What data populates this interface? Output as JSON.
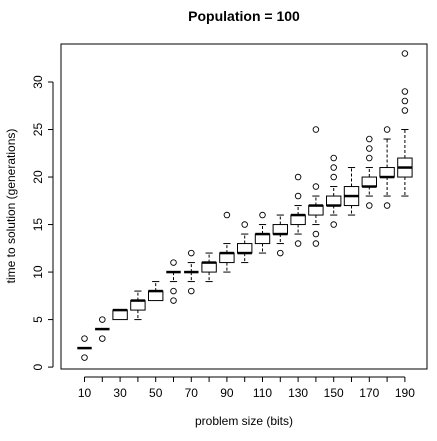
{
  "chart_data": {
    "type": "boxplot",
    "title": "Population = 100",
    "xlabel": "problem size (bits)",
    "ylabel": "time to solution (generations)",
    "ylim": [
      -0.2,
      34
    ],
    "y_ticks": [
      0,
      5,
      10,
      15,
      20,
      25,
      30
    ],
    "categories": [
      10,
      20,
      30,
      40,
      50,
      60,
      70,
      80,
      90,
      100,
      110,
      120,
      130,
      140,
      150,
      160,
      170,
      180,
      190
    ],
    "x_tick_labels": [
      10,
      30,
      50,
      70,
      90,
      110,
      130,
      150,
      170,
      190
    ],
    "series": [
      {
        "x": 10,
        "min": 2,
        "q1": 2,
        "median": 2,
        "q3": 2,
        "max": 2,
        "outliers": [
          1,
          3
        ]
      },
      {
        "x": 20,
        "min": 4,
        "q1": 4,
        "median": 4,
        "q3": 4,
        "max": 4,
        "outliers": [
          3,
          5
        ]
      },
      {
        "x": 30,
        "min": 5,
        "q1": 5,
        "median": 6,
        "q3": 6,
        "max": 6,
        "outliers": []
      },
      {
        "x": 40,
        "min": 5,
        "q1": 6,
        "median": 7,
        "q3": 7,
        "max": 8,
        "outliers": []
      },
      {
        "x": 50,
        "min": 7,
        "q1": 7,
        "median": 8,
        "q3": 8,
        "max": 9,
        "outliers": []
      },
      {
        "x": 60,
        "min": 9,
        "q1": 10,
        "median": 10,
        "q3": 10,
        "max": 10,
        "outliers": [
          7,
          8,
          11
        ]
      },
      {
        "x": 70,
        "min": 9,
        "q1": 10,
        "median": 10,
        "q3": 10,
        "max": 11,
        "outliers": [
          8,
          12
        ]
      },
      {
        "x": 80,
        "min": 9,
        "q1": 10,
        "median": 11,
        "q3": 11,
        "max": 12,
        "outliers": []
      },
      {
        "x": 90,
        "min": 10,
        "q1": 11,
        "median": 12,
        "q3": 12,
        "max": 13,
        "outliers": [
          16
        ]
      },
      {
        "x": 100,
        "min": 11,
        "q1": 12,
        "median": 12,
        "q3": 13,
        "max": 14,
        "outliers": [
          15
        ]
      },
      {
        "x": 110,
        "min": 12,
        "q1": 13,
        "median": 14,
        "q3": 14,
        "max": 15,
        "outliers": [
          16
        ]
      },
      {
        "x": 120,
        "min": 13,
        "q1": 14,
        "median": 14,
        "q3": 15,
        "max": 16,
        "outliers": [
          12
        ]
      },
      {
        "x": 130,
        "min": 14,
        "q1": 15,
        "median": 16,
        "q3": 16,
        "max": 17,
        "outliers": [
          13,
          18,
          20
        ]
      },
      {
        "x": 140,
        "min": 15,
        "q1": 16,
        "median": 17,
        "q3": 17,
        "max": 18,
        "outliers": [
          13,
          14,
          19,
          25
        ]
      },
      {
        "x": 150,
        "min": 16,
        "q1": 17,
        "median": 17,
        "q3": 18,
        "max": 19,
        "outliers": [
          15,
          20,
          21,
          22
        ]
      },
      {
        "x": 160,
        "min": 16,
        "q1": 17,
        "median": 18,
        "q3": 19,
        "max": 21,
        "outliers": []
      },
      {
        "x": 170,
        "min": 18,
        "q1": 19,
        "median": 19,
        "q3": 20,
        "max": 21,
        "outliers": [
          17,
          22,
          23,
          24
        ]
      },
      {
        "x": 180,
        "min": 18,
        "q1": 20,
        "median": 20,
        "q3": 21,
        "max": 24,
        "outliers": [
          17,
          25
        ]
      },
      {
        "x": 190,
        "min": 18,
        "q1": 20,
        "median": 21,
        "q3": 22,
        "max": 25,
        "outliers": [
          27,
          28,
          29,
          33
        ]
      }
    ]
  }
}
